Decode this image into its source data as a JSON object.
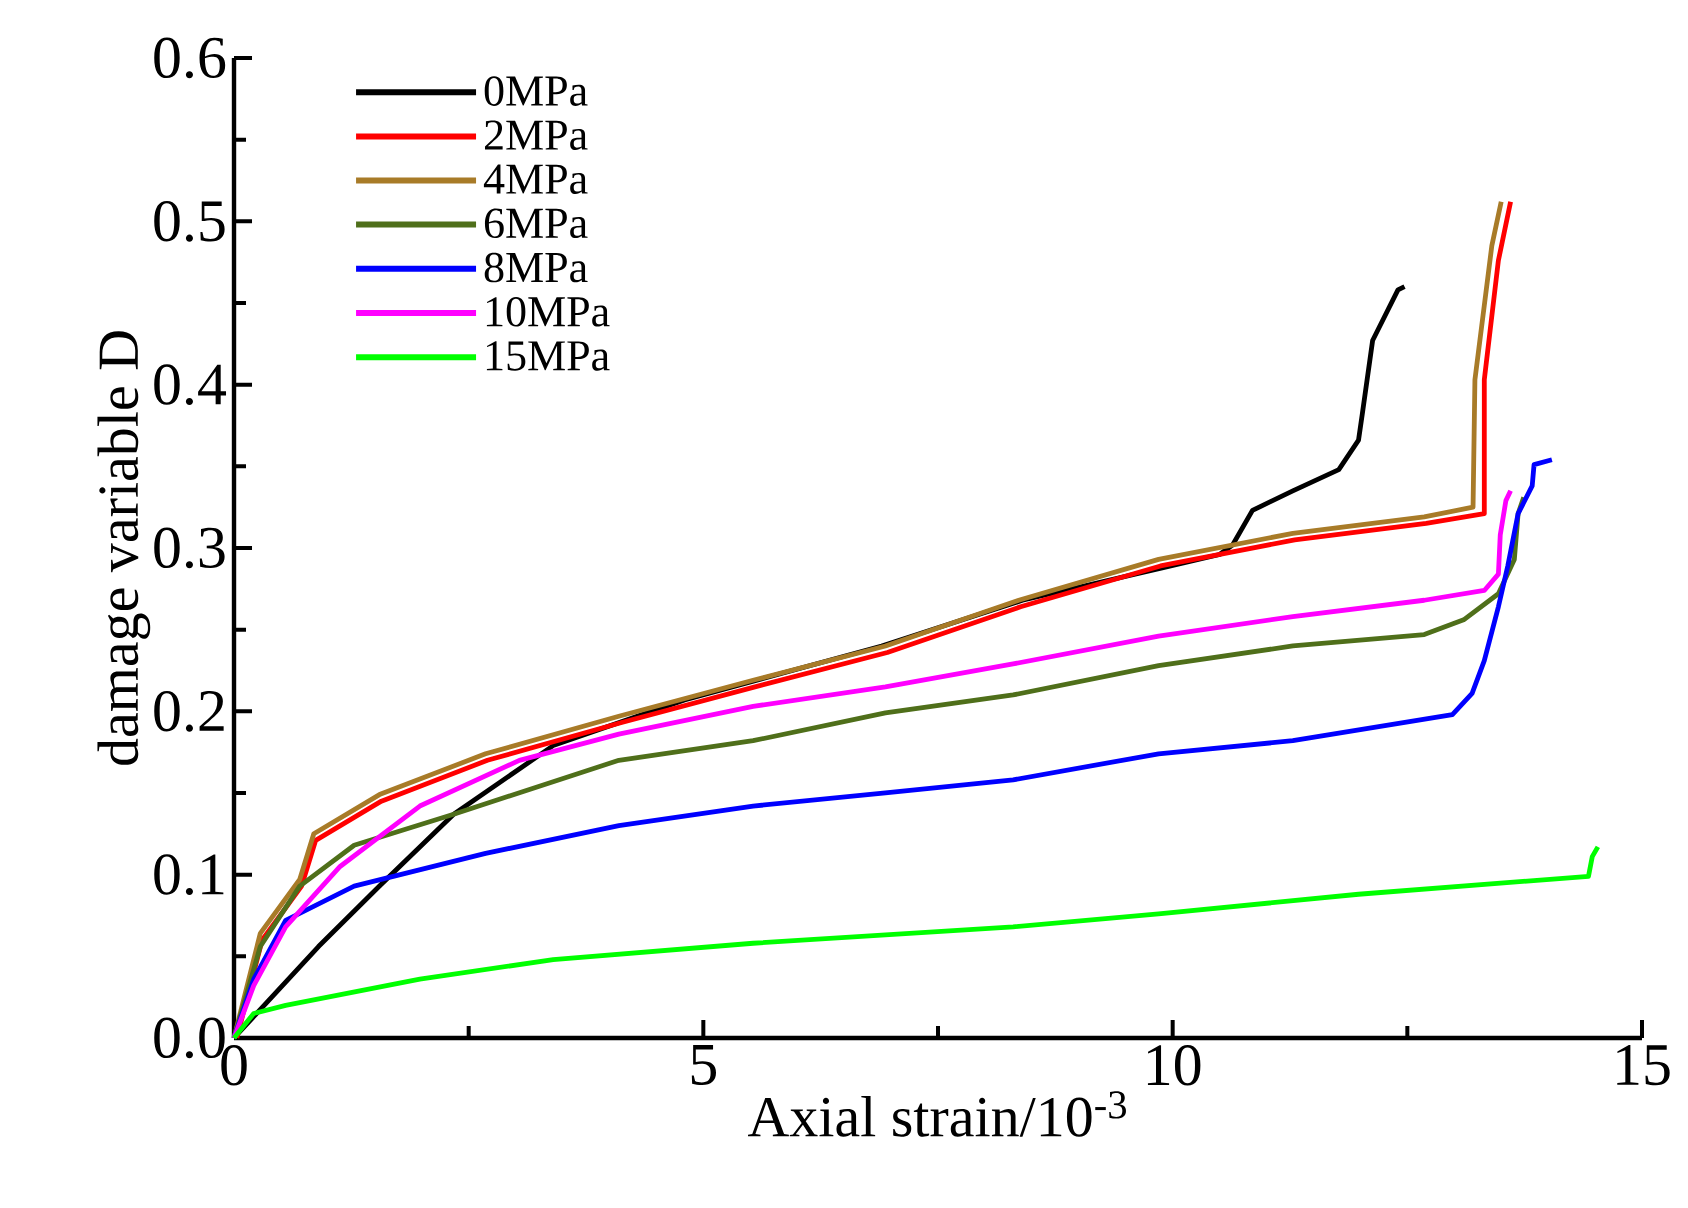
{
  "chart_data": {
    "type": "line",
    "xlabel": "Axial strain/10$^{-3}$",
    "ylabel": "damage variable D",
    "xlim": [
      0,
      15
    ],
    "ylim": [
      0,
      0.6
    ],
    "xticks": [
      0,
      5,
      10,
      15
    ],
    "yticks": [
      {
        "value": 0,
        "label": "0.0"
      },
      {
        "value": 0.1,
        "label": "0.1"
      },
      {
        "value": 0.2,
        "label": "0.2"
      },
      {
        "value": 0.3,
        "label": "0.3"
      },
      {
        "value": 0.4,
        "label": "0.4"
      },
      {
        "value": 0.5,
        "label": "0.5"
      },
      {
        "value": 0.6,
        "label": "0.6"
      }
    ],
    "legend": "top left",
    "grid": false,
    "marker": "none",
    "line_style": "solid",
    "series": [
      {
        "name": "0MPa",
        "color": "#000000",
        "x": [
          0,
          0.9,
          1.55,
          2.34,
          3.4,
          4.8,
          6.9,
          8.4,
          9.9,
          10.5,
          10.64,
          10.85,
          11.28,
          11.77,
          11.98,
          12.02,
          12.13,
          12.4,
          12.47
        ],
        "values": [
          0,
          0.056,
          0.093,
          0.137,
          0.179,
          0.207,
          0.24,
          0.268,
          0.288,
          0.296,
          0.302,
          0.323,
          0.335,
          0.348,
          0.366,
          0.382,
          0.427,
          0.458,
          0.46
        ]
      },
      {
        "name": "2MPa",
        "color": "#ff0000",
        "x": [
          0.03,
          0.3,
          0.72,
          0.87,
          1.57,
          2.7,
          4.12,
          5.55,
          6.96,
          8.38,
          9.87,
          11.3,
          12.7,
          13.32,
          13.32,
          13.47,
          13.6
        ],
        "values": [
          0,
          0.06,
          0.093,
          0.121,
          0.145,
          0.17,
          0.193,
          0.215,
          0.236,
          0.264,
          0.289,
          0.305,
          0.315,
          0.321,
          0.403,
          0.476,
          0.512
        ]
      },
      {
        "name": "4MPa",
        "color": "#a87b28",
        "x": [
          0,
          0.28,
          0.7,
          0.85,
          1.55,
          2.68,
          4.1,
          5.53,
          6.94,
          8.36,
          9.85,
          11.28,
          12.68,
          13.2,
          13.22,
          13.4,
          13.5
        ],
        "values": [
          0,
          0.064,
          0.097,
          0.125,
          0.149,
          0.174,
          0.197,
          0.219,
          0.24,
          0.268,
          0.293,
          0.309,
          0.319,
          0.325,
          0.403,
          0.485,
          0.512
        ]
      },
      {
        "name": "6MPa",
        "color": "#4f6f1a",
        "x": [
          0,
          0.28,
          0.7,
          1.28,
          2.34,
          4.1,
          5.53,
          6.94,
          8.3,
          9.85,
          11.28,
          12.68,
          13.1,
          13.47,
          13.64,
          13.68,
          13.74
        ],
        "values": [
          0,
          0.056,
          0.093,
          0.118,
          0.137,
          0.17,
          0.182,
          0.199,
          0.21,
          0.228,
          0.24,
          0.247,
          0.256,
          0.272,
          0.293,
          0.321,
          0.331
        ]
      },
      {
        "name": "8MPa",
        "color": "#0000ff",
        "x": [
          0,
          0.21,
          0.55,
          1.28,
          2.68,
          4.1,
          5.53,
          6.94,
          8.3,
          9.85,
          11.28,
          12.98,
          13.19,
          13.32,
          13.47,
          13.57,
          13.68,
          13.83,
          13.85,
          14.04
        ],
        "values": [
          0,
          0.036,
          0.072,
          0.093,
          0.113,
          0.13,
          0.142,
          0.15,
          0.158,
          0.174,
          0.182,
          0.198,
          0.211,
          0.231,
          0.264,
          0.289,
          0.321,
          0.338,
          0.351,
          0.354
        ]
      },
      {
        "name": "10MPa",
        "color": "#ff00ff",
        "x": [
          0,
          0.21,
          0.55,
          1.13,
          1.98,
          3.04,
          4.1,
          5.53,
          6.94,
          8.3,
          9.85,
          11.28,
          12.68,
          13.32,
          13.47,
          13.49,
          13.55,
          13.6
        ],
        "values": [
          0,
          0.032,
          0.068,
          0.105,
          0.142,
          0.17,
          0.186,
          0.203,
          0.215,
          0.229,
          0.246,
          0.258,
          0.268,
          0.274,
          0.284,
          0.308,
          0.329,
          0.335
        ]
      },
      {
        "name": "15MPa",
        "color": "#00ff00",
        "x": [
          0,
          0.21,
          0.55,
          1.98,
          3.4,
          5.53,
          8.3,
          9.85,
          11.98,
          14.43,
          14.47,
          14.53
        ],
        "values": [
          0,
          0.015,
          0.02,
          0.036,
          0.048,
          0.058,
          0.068,
          0.076,
          0.088,
          0.099,
          0.111,
          0.117
        ]
      }
    ]
  }
}
